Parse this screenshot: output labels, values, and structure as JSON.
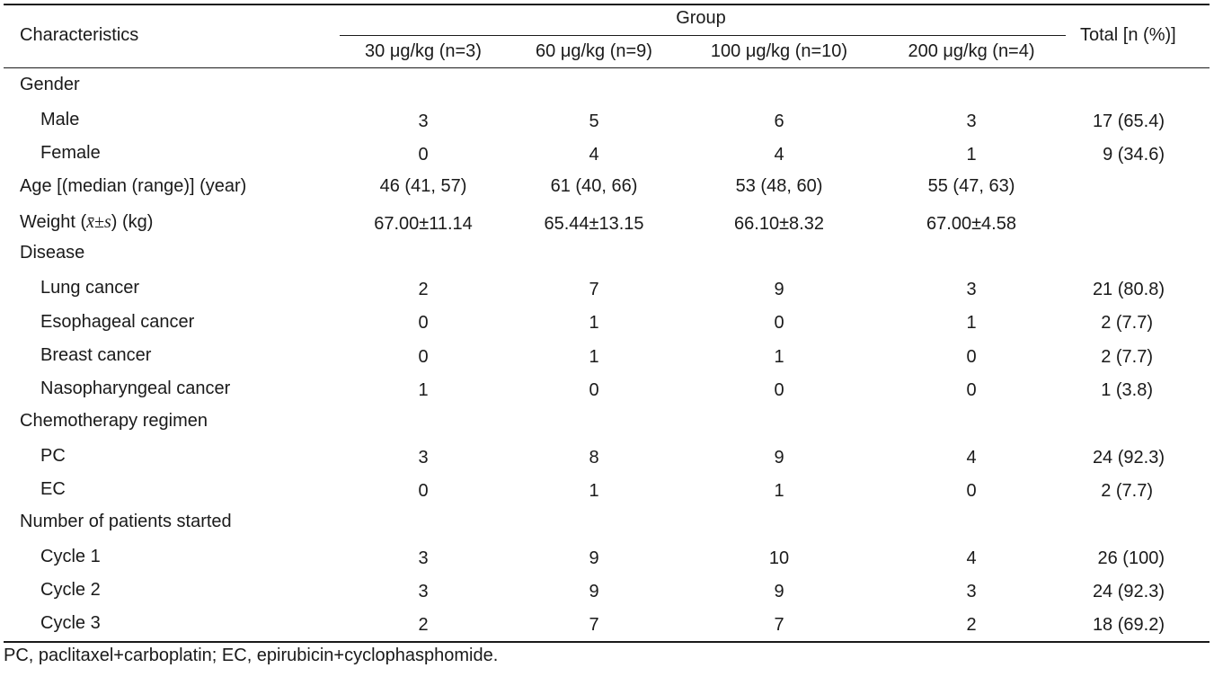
{
  "header": {
    "characteristics": "Characteristics",
    "group": "Group",
    "total": "Total [n (%)]",
    "columns": [
      "30 μg/kg (n=3)",
      "60 μg/kg (n=9)",
      "100 μg/kg (n=10)",
      "200 μg/kg (n=4)"
    ]
  },
  "rows": {
    "gender": {
      "label": "Gender",
      "male": {
        "label": "Male",
        "values": [
          "3",
          "5",
          "6",
          "3"
        ],
        "total": "17 (65.4)"
      },
      "female": {
        "label": "Female",
        "values": [
          "0",
          "4",
          "4",
          "1"
        ],
        "total": "9 (34.6)"
      }
    },
    "age": {
      "label": "Age [(median (range)] (year)",
      "values": [
        "46 (41, 57)",
        "61 (40, 66)",
        "53 (48, 60)",
        "55 (47, 63)"
      ]
    },
    "weight": {
      "label_prefix": "Weight (",
      "label_stat": "x̄±s",
      "label_suffix": ") (kg)",
      "values": [
        "67.00±11.14",
        "65.44±13.15",
        "66.10±8.32",
        "67.00±4.58"
      ]
    },
    "disease": {
      "label": "Disease",
      "lung": {
        "label": "Lung cancer",
        "values": [
          "2",
          "7",
          "9",
          "3"
        ],
        "total": "21 (80.8)"
      },
      "esophageal": {
        "label": "Esophageal cancer",
        "values": [
          "0",
          "1",
          "0",
          "1"
        ],
        "total": "2 (7.7)"
      },
      "breast": {
        "label": "Breast cancer",
        "values": [
          "0",
          "1",
          "1",
          "0"
        ],
        "total": "2 (7.7)"
      },
      "nasopharyngeal": {
        "label": "Nasopharyngeal cancer",
        "values": [
          "1",
          "0",
          "0",
          "0"
        ],
        "total": "1 (3.8)"
      }
    },
    "chemo": {
      "label": "Chemotherapy regimen",
      "pc": {
        "label": "PC",
        "values": [
          "3",
          "8",
          "9",
          "4"
        ],
        "total": "24 (92.3)"
      },
      "ec": {
        "label": "EC",
        "values": [
          "0",
          "1",
          "1",
          "0"
        ],
        "total": "2 (7.7)"
      }
    },
    "patients": {
      "label": "Number of patients started",
      "cycle1": {
        "label": "Cycle 1",
        "values": [
          "3",
          "9",
          "10",
          "4"
        ],
        "total": "26 (100)"
      },
      "cycle2": {
        "label": "Cycle 2",
        "values": [
          "3",
          "9",
          "9",
          "3"
        ],
        "total": "24 (92.3)"
      },
      "cycle3": {
        "label": "Cycle 3",
        "values": [
          "2",
          "7",
          "7",
          "2"
        ],
        "total": "18 (69.2)"
      }
    }
  },
  "footnote": "PC, paclitaxel+carboplatin; EC, epirubicin+cyclophasphomide."
}
